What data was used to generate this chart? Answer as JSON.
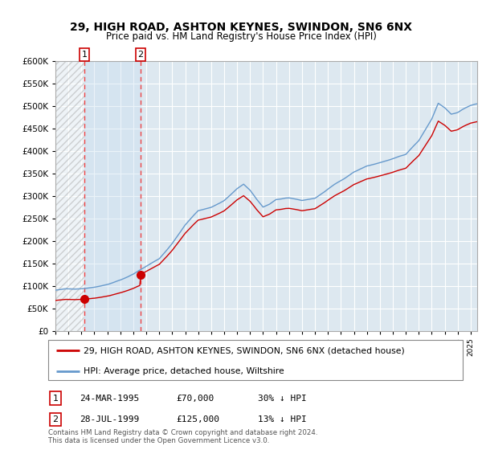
{
  "title1": "29, HIGH ROAD, ASHTON KEYNES, SWINDON, SN6 6NX",
  "title2": "Price paid vs. HM Land Registry's House Price Index (HPI)",
  "legend1": "29, HIGH ROAD, ASHTON KEYNES, SWINDON, SN6 6NX (detached house)",
  "legend2": "HPI: Average price, detached house, Wiltshire",
  "purchase1_date": 1995.22,
  "purchase1_price": 70000,
  "purchase2_date": 1999.56,
  "purchase2_price": 125000,
  "footer": "Contains HM Land Registry data © Crown copyright and database right 2024.\nThis data is licensed under the Open Government Licence v3.0.",
  "table": [
    {
      "num": "1",
      "date": "24-MAR-1995",
      "price": "£70,000",
      "note": "30% ↓ HPI"
    },
    {
      "num": "2",
      "date": "28-JUL-1999",
      "price": "£125,000",
      "note": "13% ↓ HPI"
    }
  ],
  "hpi_color": "#6699cc",
  "price_color": "#cc0000",
  "vline_color": "#ee4444",
  "bg_color": "#dde8f0",
  "grid_color": "white",
  "hatch_color": "#bbbbbb",
  "span_color": "#c8ddf0",
  "ylim": [
    0,
    600000
  ],
  "xlim_start": 1993.0,
  "xlim_end": 2025.5,
  "ytick_step": 50000
}
